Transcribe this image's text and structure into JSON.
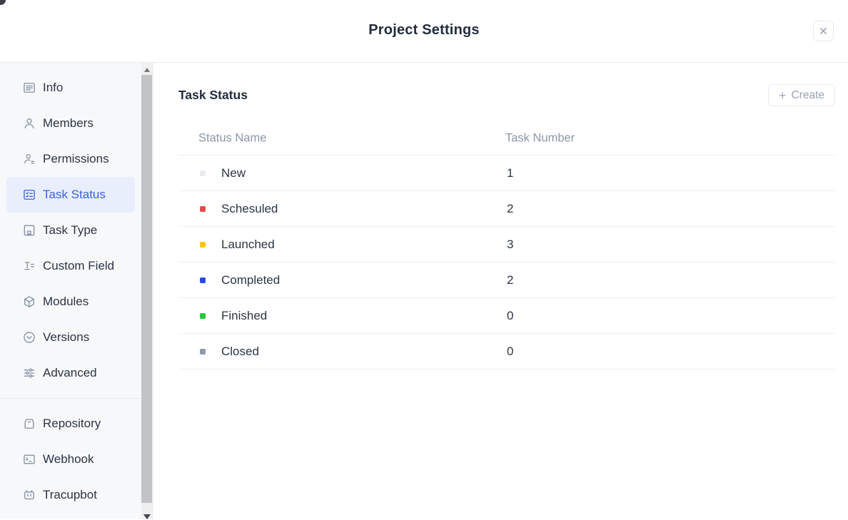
{
  "header": {
    "title": "Project Settings",
    "close_icon": "close-icon"
  },
  "sidebar": {
    "items": [
      {
        "slug": "info",
        "label": "Info",
        "icon": "info-icon",
        "selected": false
      },
      {
        "slug": "members",
        "label": "Members",
        "icon": "members-icon",
        "selected": false
      },
      {
        "slug": "permissions",
        "label": "Permissions",
        "icon": "permissions-icon",
        "selected": false
      },
      {
        "slug": "task-status",
        "label": "Task Status",
        "icon": "task-status-icon",
        "selected": true
      },
      {
        "slug": "task-type",
        "label": "Task Type",
        "icon": "task-type-icon",
        "selected": false
      },
      {
        "slug": "custom-field",
        "label": "Custom Field",
        "icon": "custom-field-icon",
        "selected": false
      },
      {
        "slug": "modules",
        "label": "Modules",
        "icon": "modules-icon",
        "selected": false
      },
      {
        "slug": "versions",
        "label": "Versions",
        "icon": "versions-icon",
        "selected": false
      },
      {
        "slug": "advanced",
        "label": "Advanced",
        "icon": "advanced-icon",
        "selected": false
      }
    ],
    "extra_items": [
      {
        "slug": "repository",
        "label": "Repository",
        "icon": "repository-icon",
        "selected": false
      },
      {
        "slug": "webhook",
        "label": "Webhook",
        "icon": "webhook-icon",
        "selected": false
      },
      {
        "slug": "tracupbot",
        "label": "Tracupbot",
        "icon": "tracupbot-icon",
        "selected": false
      }
    ]
  },
  "main": {
    "section_title": "Task Status",
    "create_button": {
      "label": "Create",
      "icon": "plus-icon",
      "plus_glyph": "+"
    },
    "table": {
      "columns": [
        "Status Name",
        "Task Number"
      ],
      "rows": [
        {
          "name": "New",
          "count": "1",
          "color": "#e9ebf0"
        },
        {
          "name": "Schesuled",
          "count": "2",
          "color": "#e84b4b"
        },
        {
          "name": "Launched",
          "count": "3",
          "color": "#fec50c"
        },
        {
          "name": "Completed",
          "count": "2",
          "color": "#2947ee"
        },
        {
          "name": "Finished",
          "count": "0",
          "color": "#26c73c"
        },
        {
          "name": "Closed",
          "count": "0",
          "color": "#8f9ab0"
        }
      ]
    }
  },
  "colors": {
    "accent_blue": "#3d63e2",
    "selected_bg": "#e9eefc",
    "sidebar_bg": "#f7f8fa",
    "title_text": "#232d3d",
    "muted_text": "#8c97a8",
    "row_border": "#edeff2"
  }
}
